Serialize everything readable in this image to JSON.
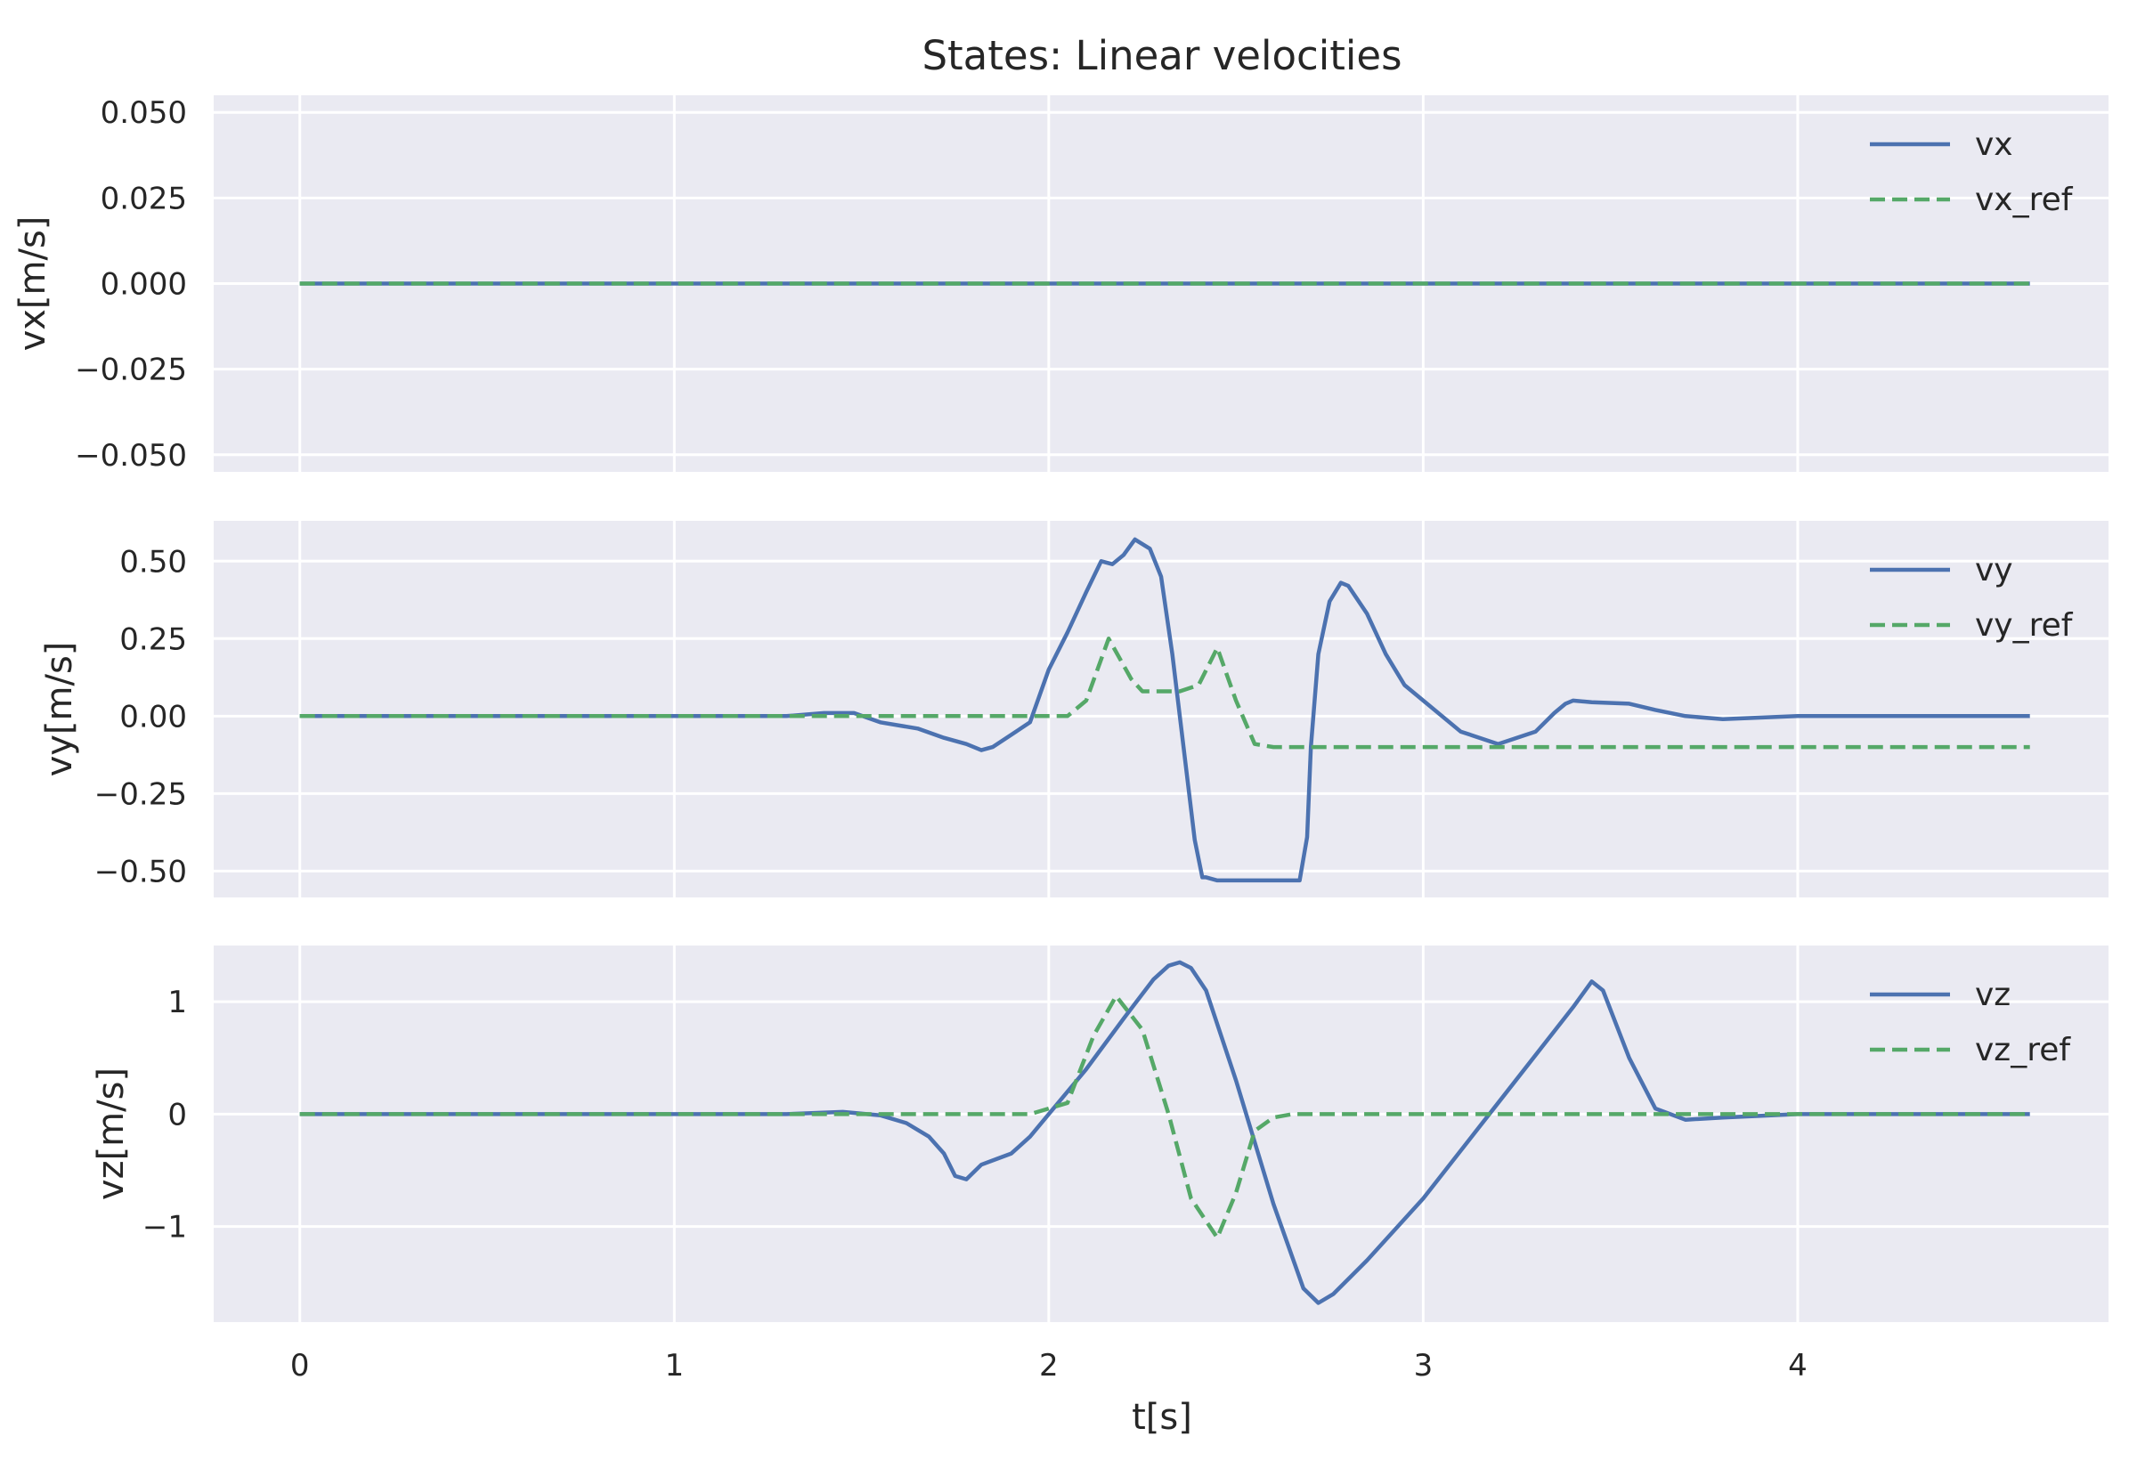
{
  "chart_data": {
    "type": "line",
    "title": "States: Linear velocities",
    "xlabel": "t[s]",
    "xlim": [
      -0.23,
      4.83
    ],
    "xticks": [
      0,
      1,
      2,
      3,
      4
    ],
    "xtick_labels": [
      "0",
      "1",
      "2",
      "3",
      "4"
    ],
    "grid": true,
    "legend_position": "top-right",
    "colors": {
      "measured": "#4c72b0",
      "reference": "#55a868",
      "background": "#eaeaf2"
    },
    "subplots": [
      {
        "ylabel": "vx[m/s]",
        "ylim": [
          -0.055,
          0.055
        ],
        "yticks": [
          -0.05,
          -0.025,
          0,
          0.025,
          0.05
        ],
        "ytick_labels": [
          "−0.050",
          "−0.025",
          "0.000",
          "0.025",
          "0.050"
        ],
        "series": [
          {
            "name": "vx",
            "style": "solid",
            "x": [
              0,
              4.62
            ],
            "y": [
              0,
              0
            ]
          },
          {
            "name": "vx_ref",
            "style": "dashed",
            "x": [
              0,
              4.62
            ],
            "y": [
              0,
              0
            ]
          }
        ]
      },
      {
        "ylabel": "vy[m/s]",
        "ylim": [
          -0.585,
          0.63
        ],
        "yticks": [
          -0.5,
          -0.25,
          0,
          0.25,
          0.5
        ],
        "ytick_labels": [
          "−0.50",
          "−0.25",
          "0.00",
          "0.25",
          "0.50"
        ],
        "series": [
          {
            "name": "vy",
            "style": "solid",
            "x": [
              0,
              1.3,
              1.4,
              1.48,
              1.55,
              1.65,
              1.72,
              1.78,
              1.82,
              1.85,
              1.9,
              1.95,
              2.0,
              2.05,
              2.1,
              2.14,
              2.17,
              2.2,
              2.23,
              2.27,
              2.3,
              2.33,
              2.36,
              2.39,
              2.41,
              2.42,
              2.45,
              2.67,
              2.69,
              2.7,
              2.72,
              2.75,
              2.78,
              2.8,
              2.85,
              2.9,
              2.95,
              3.0,
              3.1,
              3.2,
              3.3,
              3.35,
              3.38,
              3.4,
              3.45,
              3.55,
              3.62,
              3.7,
              3.8,
              4.0,
              4.2,
              4.62
            ],
            "y": [
              0,
              0,
              0.01,
              0.01,
              -0.02,
              -0.04,
              -0.07,
              -0.09,
              -0.11,
              -0.1,
              -0.06,
              -0.02,
              0.15,
              0.27,
              0.4,
              0.5,
              0.49,
              0.52,
              0.57,
              0.54,
              0.45,
              0.2,
              -0.1,
              -0.4,
              -0.52,
              -0.52,
              -0.53,
              -0.53,
              -0.39,
              -0.1,
              0.2,
              0.37,
              0.43,
              0.42,
              0.33,
              0.2,
              0.1,
              0.05,
              -0.05,
              -0.09,
              -0.05,
              0.01,
              0.04,
              0.05,
              0.045,
              0.04,
              0.02,
              0,
              -0.01,
              0,
              0,
              0
            ]
          },
          {
            "name": "vy_ref",
            "style": "dashed",
            "x": [
              0,
              1.95,
              2.05,
              2.1,
              2.16,
              2.22,
              2.25,
              2.3,
              2.35,
              2.4,
              2.45,
              2.5,
              2.55,
              2.6,
              4.62
            ],
            "y": [
              0,
              0,
              0,
              0.05,
              0.25,
              0.12,
              0.08,
              0.08,
              0.08,
              0.1,
              0.22,
              0.05,
              -0.09,
              -0.1,
              -0.1
            ]
          }
        ]
      },
      {
        "ylabel": "vz[m/s]",
        "ylim": [
          -1.85,
          1.5
        ],
        "yticks": [
          -1,
          0,
          1
        ],
        "ytick_labels": [
          "−1",
          "0",
          "1"
        ],
        "series": [
          {
            "name": "vz",
            "style": "solid",
            "x": [
              0,
              1.3,
              1.45,
              1.55,
              1.62,
              1.68,
              1.72,
              1.75,
              1.78,
              1.82,
              1.86,
              1.9,
              1.95,
              2.0,
              2.1,
              2.2,
              2.28,
              2.32,
              2.35,
              2.38,
              2.42,
              2.5,
              2.6,
              2.68,
              2.72,
              2.76,
              2.85,
              3.0,
              3.2,
              3.4,
              3.45,
              3.48,
              3.55,
              3.62,
              3.7,
              3.8,
              4.0,
              4.62
            ],
            "y": [
              0,
              0,
              0.02,
              -0.01,
              -0.08,
              -0.2,
              -0.35,
              -0.55,
              -0.58,
              -0.45,
              -0.4,
              -0.35,
              -0.2,
              0,
              0.4,
              0.85,
              1.2,
              1.32,
              1.35,
              1.3,
              1.1,
              0.3,
              -0.8,
              -1.55,
              -1.68,
              -1.6,
              -1.3,
              -0.75,
              0.1,
              0.95,
              1.18,
              1.1,
              0.5,
              0.05,
              -0.05,
              -0.03,
              0,
              0
            ]
          },
          {
            "name": "vz_ref",
            "style": "dashed",
            "x": [
              0,
              1.95,
              2.05,
              2.12,
              2.18,
              2.25,
              2.32,
              2.38,
              2.45,
              2.5,
              2.55,
              2.6,
              2.65,
              4.62
            ],
            "y": [
              0,
              0,
              0.1,
              0.7,
              1.05,
              0.75,
              0.0,
              -0.75,
              -1.1,
              -0.7,
              -0.15,
              -0.03,
              0,
              0
            ]
          }
        ]
      }
    ]
  }
}
